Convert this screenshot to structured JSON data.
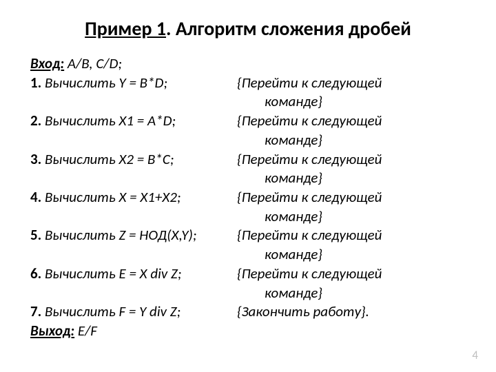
{
  "title": {
    "prefix": "Пример 1",
    "suffix": ". Алгоритм сложения дробей"
  },
  "input": {
    "label": "Вход:",
    "value": " A/B, C/D;"
  },
  "steps": [
    {
      "num": "1.",
      "text": " Вычислить  Y = B*D;",
      "comment": "{Перейти к следующей",
      "comment2": "команде}"
    },
    {
      "num": "2.",
      "text": " Вычислить X1 = A*D;",
      "comment": "{Перейти к следующей",
      "comment2": "команде}"
    },
    {
      "num": "3.",
      "text": " Вычислить X2 = B*C;",
      "comment": "{Перейти к следующей",
      "comment2": "команде}"
    },
    {
      "num": "4.",
      "text": " Вычислить X = X1+X2;",
      "comment": "{Перейти к следующей",
      "comment2": "команде}"
    },
    {
      "num": "5.",
      "text": " Вычислить Z = НОД(X,Y);",
      "comment": "{Перейти к следующей",
      "comment2": "команде}"
    },
    {
      "num": "6.",
      "text": " Вычислить E = X div Z;",
      "comment": "{Перейти к следующей",
      "comment2": "команде}"
    },
    {
      "num": "7.",
      "text": " Вычислить F = Y div Z;",
      "comment": "{Закончить работу}.",
      "comment2": ""
    }
  ],
  "output": {
    "label": "Выход:",
    "value": " E/F"
  },
  "page_number": "4",
  "style": {
    "background_color": "#ffffff",
    "text_color": "#000000",
    "pagenum_color": "#bfbfbf",
    "title_fontsize": 28,
    "body_fontsize": 21,
    "left_col_width": 300
  }
}
